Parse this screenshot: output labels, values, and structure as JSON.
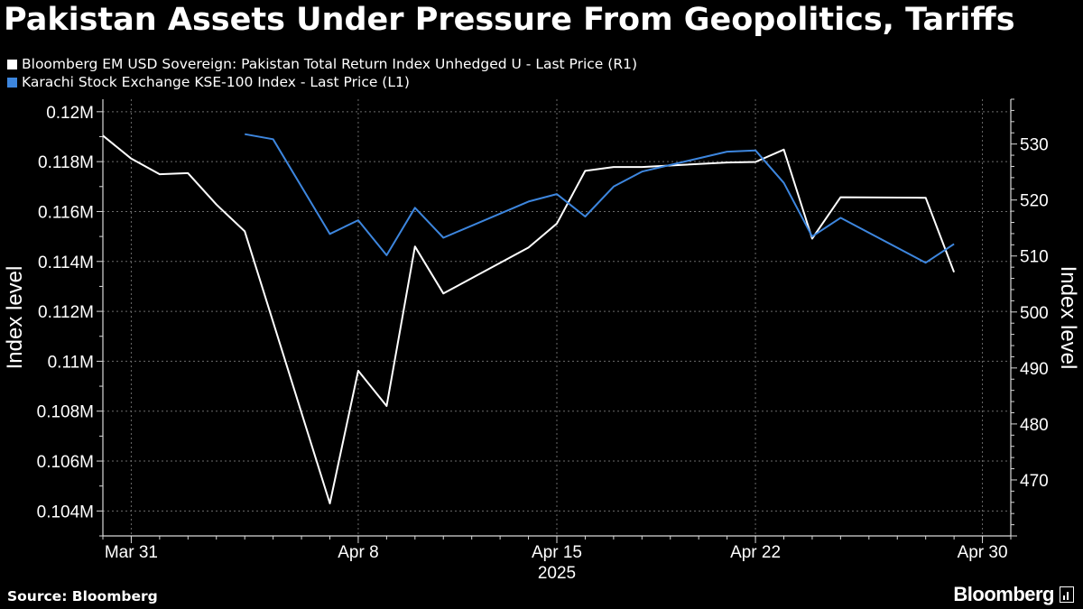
{
  "title": "Pakistan Assets Under Pressure From Geopolitics, Tariffs",
  "footer": {
    "source": "Source: Bloomberg",
    "brand": "Bloomberg"
  },
  "chart_data": {
    "type": "line",
    "title": "Pakistan Assets Under Pressure From Geopolitics, Tariffs",
    "x_axis": {
      "type": "date",
      "range": [
        "2025-03-30",
        "2025-05-01"
      ],
      "tick_labels": [
        {
          "date": "2025-03-31",
          "label": "Mar 31"
        },
        {
          "date": "2025-04-08",
          "label": "Apr 8"
        },
        {
          "date": "2025-04-15",
          "label": "Apr 15"
        },
        {
          "date": "2025-04-22",
          "label": "Apr 22"
        },
        {
          "date": "2025-04-30",
          "label": "Apr 30"
        }
      ],
      "year_label": "2025"
    },
    "left_axis": {
      "label": "Index level",
      "range": [
        103000,
        120500
      ],
      "ticks": [
        104000,
        106000,
        108000,
        110000,
        112000,
        114000,
        116000,
        118000,
        120000
      ],
      "tick_labels": [
        "0.104M",
        "0.106M",
        "0.108M",
        "0.11M",
        "0.112M",
        "0.114M",
        "0.116M",
        "0.118M",
        "0.12M"
      ]
    },
    "right_axis": {
      "label": "Index level",
      "range": [
        460,
        538
      ],
      "ticks": [
        470,
        480,
        490,
        500,
        510,
        520,
        530
      ],
      "tick_labels": [
        "470",
        "480",
        "490",
        "500",
        "510",
        "520",
        "530"
      ]
    },
    "grid": true,
    "legend_position": "top-left",
    "series": [
      {
        "name": "Bloomberg EM USD Sovereign: Pakistan Total Return Index Unhedged U - Last Price (R1)",
        "axis": "right",
        "color": "#ffffff",
        "points": [
          [
            "2025-03-30",
            531.5
          ],
          [
            "2025-03-31",
            527.4
          ],
          [
            "2025-04-01",
            524.6
          ],
          [
            "2025-04-02",
            524.8
          ],
          [
            "2025-04-03",
            519.2
          ],
          [
            "2025-04-04",
            514.4
          ],
          [
            "2025-04-07",
            465.8
          ],
          [
            "2025-04-08",
            489.5
          ],
          [
            "2025-04-09",
            483.2
          ],
          [
            "2025-04-10",
            511.7
          ],
          [
            "2025-04-11",
            503.3
          ],
          [
            "2025-04-14",
            511.5
          ],
          [
            "2025-04-15",
            515.8
          ],
          [
            "2025-04-16",
            525.2
          ],
          [
            "2025-04-17",
            525.9
          ],
          [
            "2025-04-18",
            525.9
          ],
          [
            "2025-04-21",
            526.7
          ],
          [
            "2025-04-22",
            526.8
          ],
          [
            "2025-04-23",
            529.0
          ],
          [
            "2025-04-24",
            513.1
          ],
          [
            "2025-04-25",
            520.5
          ],
          [
            "2025-04-28",
            520.4
          ],
          [
            "2025-04-29",
            507.1
          ]
        ]
      },
      {
        "name": "Karachi Stock Exchange KSE-100 Index - Last Price (L1)",
        "axis": "left",
        "color": "#3d86de",
        "points": [
          [
            "2025-04-04",
            119100
          ],
          [
            "2025-04-05",
            118900
          ],
          [
            "2025-04-07",
            115100
          ],
          [
            "2025-04-08",
            115650
          ],
          [
            "2025-04-09",
            114250
          ],
          [
            "2025-04-10",
            116150
          ],
          [
            "2025-04-11",
            114950
          ],
          [
            "2025-04-14",
            116400
          ],
          [
            "2025-04-15",
            116700
          ],
          [
            "2025-04-16",
            115800
          ],
          [
            "2025-04-17",
            117000
          ],
          [
            "2025-04-18",
            117600
          ],
          [
            "2025-04-21",
            118400
          ],
          [
            "2025-04-22",
            118450
          ],
          [
            "2025-04-23",
            117150
          ],
          [
            "2025-04-24",
            115000
          ],
          [
            "2025-04-25",
            115750
          ],
          [
            "2025-04-28",
            113950
          ],
          [
            "2025-04-29",
            114700
          ]
        ]
      }
    ]
  }
}
